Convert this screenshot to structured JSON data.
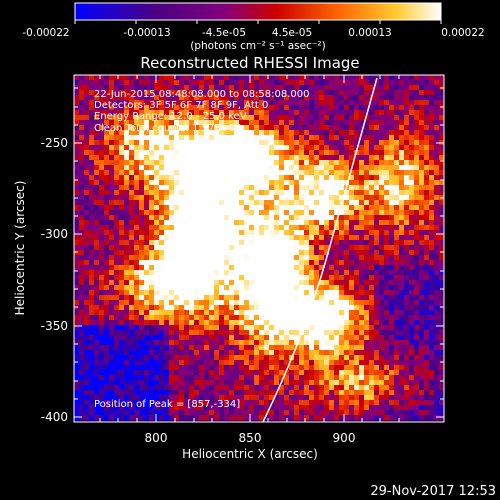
{
  "colorbar": {
    "ticks": [
      "-0.00022",
      "-0.00013",
      "-4.5e-05",
      "4.5e-05",
      "0.00013",
      "0.00022"
    ],
    "units": "(photons cm⁻² s⁻¹ asec⁻²)"
  },
  "plot": {
    "title": "Reconstructed RHESSI Image",
    "info_lines": [
      "22-Jun-2015 08:48:08.000 to 08:58:08.000",
      "Detectors: 3F 5F 6F 7F 8F 9F, Att 0",
      "Energy Range: 12.0 - 25.0 keV",
      "Clean    Total counts: 1.57E+04"
    ],
    "peak_label": "Position of Peak = [857,-334]",
    "xlabel": "Heliocentric X (arcsec)",
    "ylabel": "Heliocentric Y (arcsec)",
    "xticks": [
      "800",
      "850",
      "900"
    ],
    "yticks": [
      "-250",
      "-300",
      "-350",
      "-400"
    ],
    "footer_date": "29-Nov-2017 12:53"
  },
  "colors": {
    "background": "#000000",
    "text": "#ffffff",
    "limb": "#ffffff",
    "colormap": [
      "#0000ff",
      "#4b0082",
      "#800080",
      "#cc0000",
      "#ff6600",
      "#ffcc33",
      "#ffffff"
    ]
  }
}
